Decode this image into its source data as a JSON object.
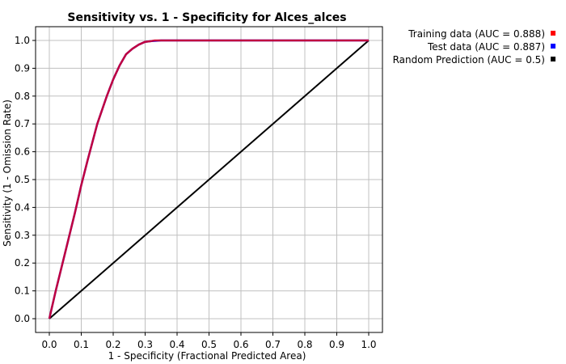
{
  "chart_data": {
    "type": "line",
    "title": "Sensitivity vs. 1 - Specificity for Alces_alces",
    "xlabel": "1 - Specificity  (Fractional Predicted Area)",
    "ylabel": "Sensitivity  (1 - Omission Rate)",
    "xlim": [
      0.0,
      1.0
    ],
    "ylim": [
      0.0,
      1.0
    ],
    "xticks": [
      "0.0",
      "0.1",
      "0.2",
      "0.3",
      "0.4",
      "0.5",
      "0.6",
      "0.7",
      "0.8",
      "0.9",
      "1.0"
    ],
    "yticks": [
      "0.0",
      "0.1",
      "0.2",
      "0.3",
      "0.4",
      "0.5",
      "0.6",
      "0.7",
      "0.8",
      "0.9",
      "1.0"
    ],
    "grid": true,
    "legend_position": "top-right, outside plot",
    "series": [
      {
        "name": "Random Prediction (AUC = 0.5)",
        "color": "#000000",
        "x": [
          0.0,
          1.0
        ],
        "y": [
          0.0,
          1.0
        ]
      },
      {
        "name": "Test data (AUC = 0.887)",
        "color": "#0000ff",
        "x": [
          0.0,
          0.02,
          0.05,
          0.08,
          0.1,
          0.12,
          0.15,
          0.18,
          0.2,
          0.22,
          0.24,
          0.26,
          0.28,
          0.3,
          0.32,
          0.35,
          0.5,
          1.0
        ],
        "y": [
          0.0,
          0.1,
          0.24,
          0.38,
          0.48,
          0.57,
          0.7,
          0.8,
          0.86,
          0.91,
          0.95,
          0.97,
          0.985,
          0.995,
          0.998,
          1.0,
          1.0,
          1.0
        ]
      },
      {
        "name": "Training data (AUC = 0.888)",
        "color": "#ff0000",
        "x": [
          0.0,
          0.02,
          0.05,
          0.08,
          0.1,
          0.12,
          0.15,
          0.18,
          0.2,
          0.22,
          0.24,
          0.26,
          0.28,
          0.3,
          0.32,
          0.33,
          0.5,
          1.0
        ],
        "y": [
          0.0,
          0.1,
          0.24,
          0.38,
          0.48,
          0.57,
          0.7,
          0.8,
          0.86,
          0.91,
          0.95,
          0.97,
          0.985,
          0.995,
          0.998,
          1.0,
          1.0,
          1.0
        ]
      }
    ]
  }
}
